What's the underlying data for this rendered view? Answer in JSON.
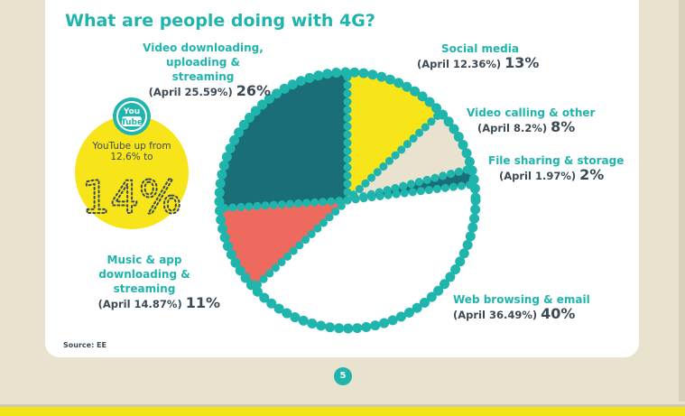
{
  "title": "What are people doing with 4G?",
  "source": "Source: EE",
  "page_number": "5",
  "callout": {
    "icon_line1": "You",
    "icon_line2": "Tube",
    "text": "YouTube up from 12.6% to",
    "value": "14%"
  },
  "labels": [
    {
      "category": "Social media",
      "previous": "(April 12.36%)",
      "current": "13%"
    },
    {
      "category": "Video calling & other",
      "previous": "(April 8.2%)",
      "current": "8%"
    },
    {
      "category": "File sharing & storage",
      "previous": "(April 1.97%)",
      "current": "2%"
    },
    {
      "category": "Web browsing & email",
      "previous": "(April 36.49%)",
      "current": "40%"
    },
    {
      "category": "Music & app downloading & streaming",
      "previous": "(April 14.87%)",
      "current": "11%"
    },
    {
      "category": "Video downloading, uploading & streaming",
      "previous": "(April 25.59%)",
      "current": "26%"
    }
  ],
  "colors": {
    "teal": "#1fb5ad",
    "dark_teal": "#1a6e77",
    "yellow": "#f7e51a",
    "beige": "#e8e2cf",
    "salmon": "#ef6a5e",
    "white": "#ffffff",
    "dark_text": "#3c4a55"
  },
  "chart_data": {
    "type": "pie",
    "title": "What are people doing with 4G?",
    "slices": [
      {
        "label": "Social media",
        "value": 13,
        "april_value": 12.36,
        "color": "#f7e51a"
      },
      {
        "label": "Video calling & other",
        "value": 8,
        "april_value": 8.2,
        "color": "#e8e2cf"
      },
      {
        "label": "File sharing & storage",
        "value": 2,
        "april_value": 1.97,
        "color": "#1a6e77"
      },
      {
        "label": "Web browsing & email",
        "value": 40,
        "april_value": 36.49,
        "color": "#ffffff"
      },
      {
        "label": "Music & app downloading & streaming",
        "value": 11,
        "april_value": 14.87,
        "color": "#ef6a5e"
      },
      {
        "label": "Video downloading, uploading & streaming",
        "value": 26,
        "april_value": 25.59,
        "color": "#1a6e77"
      }
    ]
  }
}
